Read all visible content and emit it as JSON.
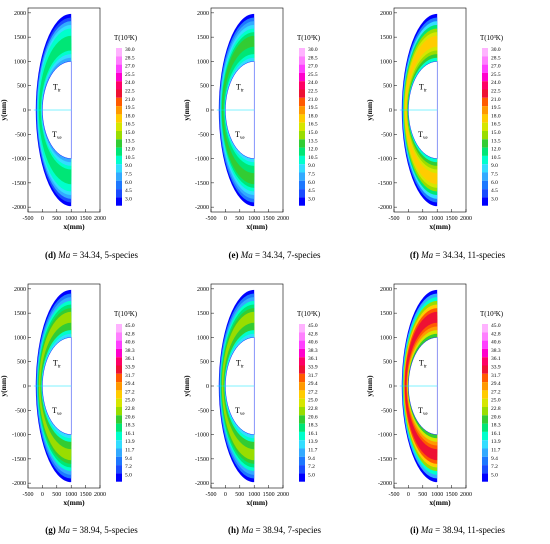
{
  "chart_data": [
    {
      "type": "contour",
      "id": "d",
      "ma": "34.34",
      "species": "5-species",
      "xlabel": "x(mm)",
      "ylabel": "y(mm)",
      "legend_title": "T(10³K)",
      "xticks": [
        "-500",
        "0",
        "500",
        "1000",
        "1500",
        "2000"
      ],
      "yticks": [
        "2000",
        "1500",
        "1000",
        "500",
        "0",
        "-500",
        "-1000",
        "-1500",
        "-2000"
      ],
      "xlim": [
        -500,
        2000
      ],
      "ylim": [
        -2100,
        2100
      ],
      "colorbar_levels": [
        "30.0",
        "28.5",
        "27.0",
        "25.5",
        "24.0",
        "22.5",
        "21.0",
        "19.5",
        "18.0",
        "16.5",
        "15.0",
        "13.5",
        "12.0",
        "10.5",
        "9.0",
        "7.5",
        "6.0",
        "4.5",
        "3.0"
      ],
      "region_labels": {
        "upper": "T_tr",
        "lower": "T_ve"
      },
      "peak_level_index": 12
    },
    {
      "type": "contour",
      "id": "e",
      "ma": "34.34",
      "species": "7-species",
      "xlabel": "x(mm)",
      "ylabel": "y(mm)",
      "legend_title": "T(10³K)",
      "xticks": [
        "-500",
        "0",
        "500",
        "1000",
        "1500",
        "2000"
      ],
      "yticks": [
        "2000",
        "1500",
        "1000",
        "500",
        "0",
        "-500",
        "-1000",
        "-1500",
        "-2000"
      ],
      "xlim": [
        -500,
        2000
      ],
      "ylim": [
        -2100,
        2100
      ],
      "colorbar_levels": [
        "30.0",
        "28.5",
        "27.0",
        "25.5",
        "24.0",
        "22.5",
        "21.0",
        "19.5",
        "18.0",
        "16.5",
        "15.0",
        "13.5",
        "12.0",
        "10.5",
        "9.0",
        "7.5",
        "6.0",
        "4.5",
        "3.0"
      ],
      "region_labels": {
        "upper": "T_tr",
        "lower": "T_ve"
      },
      "peak_level_index": 11
    },
    {
      "type": "contour",
      "id": "f",
      "ma": "34.34",
      "species": "11-species",
      "xlabel": "x(mm)",
      "ylabel": "y(mm)",
      "legend_title": "T(10³K)",
      "xticks": [
        "-500",
        "0",
        "500",
        "1000",
        "1500",
        "2000"
      ],
      "yticks": [
        "2000",
        "1500",
        "1000",
        "500",
        "0",
        "-500",
        "-1000",
        "-1500",
        "-2000"
      ],
      "xlim": [
        -500,
        2000
      ],
      "ylim": [
        -2100,
        2100
      ],
      "colorbar_levels": [
        "30.0",
        "28.5",
        "27.0",
        "25.5",
        "24.0",
        "22.5",
        "21.0",
        "19.5",
        "18.0",
        "16.5",
        "15.0",
        "13.5",
        "12.0",
        "10.5",
        "9.0",
        "7.5",
        "6.0",
        "4.5",
        "3.0"
      ],
      "region_labels": {
        "upper": "T_tr",
        "lower": "T_ve"
      },
      "peak_level_index": 8
    },
    {
      "type": "contour",
      "id": "g",
      "ma": "38.94",
      "species": "5-species",
      "xlabel": "x(mm)",
      "ylabel": "y(mm)",
      "legend_title": "T(10³K)",
      "xticks": [
        "-500",
        "0",
        "500",
        "1000",
        "1500",
        "2000"
      ],
      "yticks": [
        "2000",
        "1500",
        "1000",
        "500",
        "0",
        "-500",
        "-1000",
        "-1500",
        "-2000"
      ],
      "xlim": [
        -500,
        2000
      ],
      "ylim": [
        -2100,
        2100
      ],
      "colorbar_levels": [
        "45.0",
        "42.8",
        "40.6",
        "38.3",
        "36.1",
        "33.9",
        "31.7",
        "29.4",
        "27.2",
        "25.0",
        "22.8",
        "20.6",
        "18.3",
        "16.1",
        "13.9",
        "11.7",
        "9.4",
        "7.2",
        "5.0"
      ],
      "region_labels": {
        "upper": "T_tr",
        "lower": "T_ve"
      },
      "peak_level_index": 10
    },
    {
      "type": "contour",
      "id": "h",
      "ma": "38.94",
      "species": "7-species",
      "xlabel": "x(mm)",
      "ylabel": "y(mm)",
      "legend_title": "T(10³K)",
      "xticks": [
        "-500",
        "0",
        "500",
        "1000",
        "1500",
        "2000"
      ],
      "yticks": [
        "2000",
        "1500",
        "1000",
        "500",
        "0",
        "-500",
        "-1000",
        "-1500",
        "-2000"
      ],
      "xlim": [
        -500,
        2000
      ],
      "ylim": [
        -2100,
        2100
      ],
      "colorbar_levels": [
        "45.0",
        "42.8",
        "40.6",
        "38.3",
        "36.1",
        "33.9",
        "31.7",
        "29.4",
        "27.2",
        "25.0",
        "22.8",
        "20.6",
        "18.3",
        "16.1",
        "13.9",
        "11.7",
        "9.4",
        "7.2",
        "5.0"
      ],
      "region_labels": {
        "upper": "T_tr",
        "lower": "T_ve"
      },
      "peak_level_index": 10
    },
    {
      "type": "contour",
      "id": "i",
      "ma": "38.94",
      "species": "11-species",
      "xlabel": "x(mm)",
      "ylabel": "y(mm)",
      "legend_title": "T(10³K)",
      "xticks": [
        "-500",
        "0",
        "500",
        "1000",
        "1500",
        "2000"
      ],
      "yticks": [
        "2000",
        "1500",
        "1000",
        "500",
        "0",
        "-500",
        "-1000",
        "-1500",
        "-2000"
      ],
      "xlim": [
        -500,
        2000
      ],
      "ylim": [
        -2100,
        2100
      ],
      "colorbar_levels": [
        "45.0",
        "42.8",
        "40.6",
        "38.3",
        "36.1",
        "33.9",
        "31.7",
        "29.4",
        "27.2",
        "25.0",
        "22.8",
        "20.6",
        "18.3",
        "16.1",
        "13.9",
        "11.7",
        "9.4",
        "7.2",
        "5.0"
      ],
      "region_labels": {
        "upper": "T_tr",
        "lower": "T_ve"
      },
      "peak_level_index": 5
    }
  ],
  "colormap": [
    "#ffb3ff",
    "#ff7fff",
    "#ff3fff",
    "#ff00cc",
    "#ff0066",
    "#ee1133",
    "#ff5a00",
    "#ff9900",
    "#ffcc00",
    "#d6e600",
    "#99dd00",
    "#33cc33",
    "#00e676",
    "#00ffcc",
    "#33ddff",
    "#33aaff",
    "#1e78ff",
    "#1a4cff",
    "#0000ff"
  ],
  "captions": [
    {
      "id": "d",
      "letter": "(d)",
      "ma_label": "Ma",
      "text": " = 34.34, 5-species"
    },
    {
      "id": "e",
      "letter": "(e)",
      "ma_label": "Ma",
      "text": " = 34.34, 7-species"
    },
    {
      "id": "f",
      "letter": "(f)",
      "ma_label": "Ma",
      "text": " = 34.34, 11-species"
    },
    {
      "id": "g",
      "letter": "(g)",
      "ma_label": "Ma",
      "text": " = 38.94, 5-species"
    },
    {
      "id": "h",
      "letter": "(h)",
      "ma_label": "Ma",
      "text": " = 38.94, 7-species"
    },
    {
      "id": "i",
      "letter": "(i)",
      "ma_label": "Ma",
      "text": " = 38.94, 11-species"
    }
  ]
}
